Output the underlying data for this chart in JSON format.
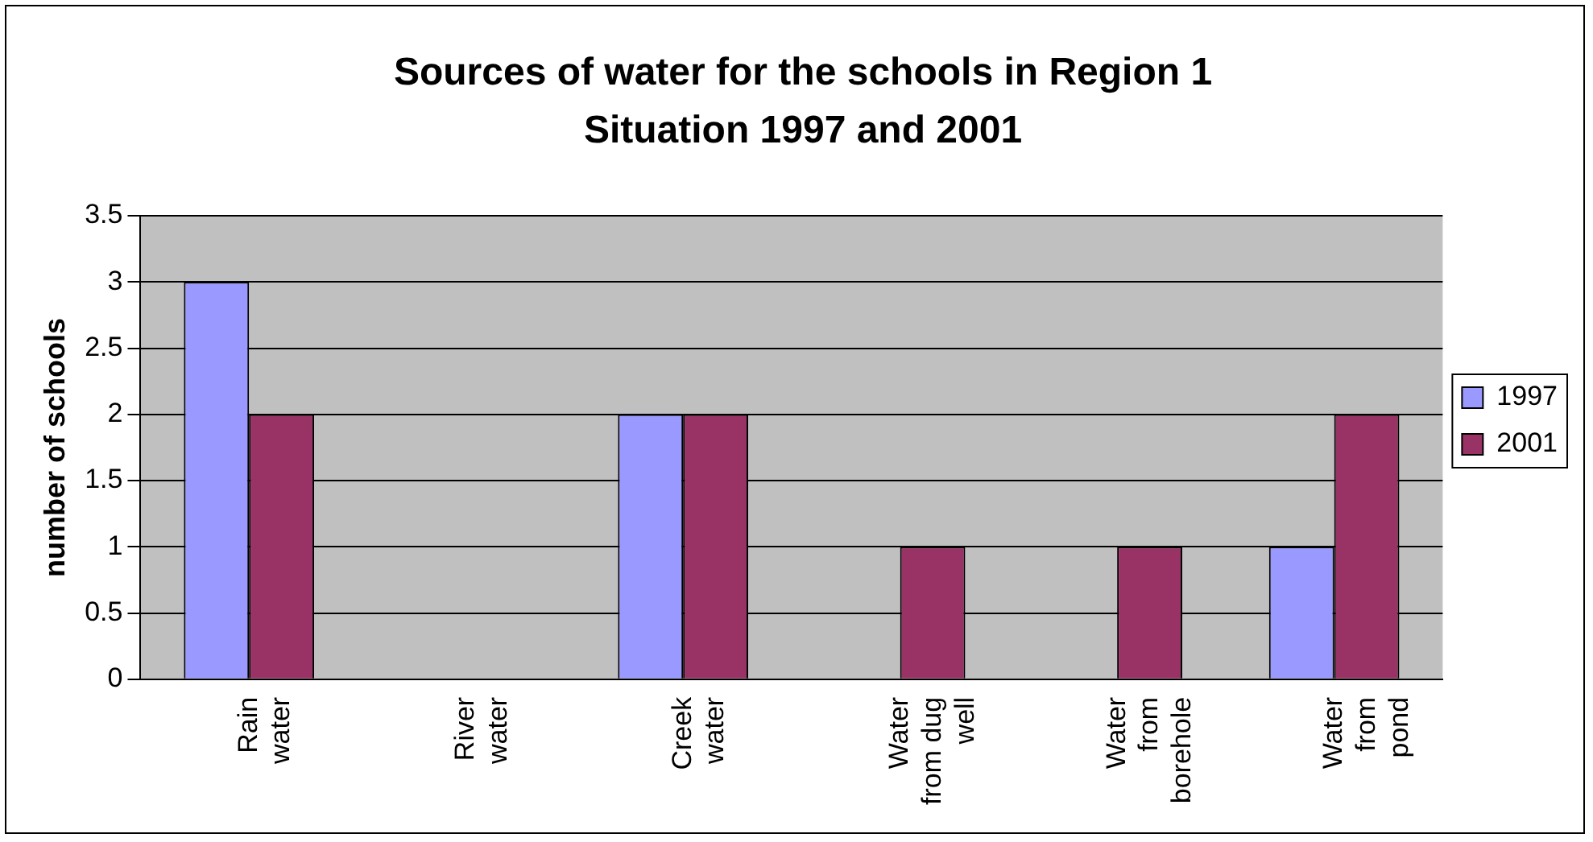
{
  "chart_data": {
    "type": "bar",
    "title": "Sources of water for the schools in Region 1\nSituation 1997 and 2001",
    "ylabel": "number of schools",
    "categories": [
      "Rain water",
      "River water",
      "Creek water",
      "Water from dug well",
      "Water from borehole",
      "Water from pond"
    ],
    "series": [
      {
        "name": "1997",
        "color": "#9999ff",
        "values": [
          3,
          0,
          2,
          0,
          0,
          1
        ]
      },
      {
        "name": "2001",
        "color": "#993366",
        "values": [
          2,
          0,
          2,
          1,
          1,
          2
        ]
      }
    ],
    "ylim": [
      0,
      3.5
    ],
    "yticks": [
      0,
      0.5,
      1,
      1.5,
      2,
      2.5,
      3,
      3.5
    ],
    "grid": "y",
    "legend": "right"
  }
}
